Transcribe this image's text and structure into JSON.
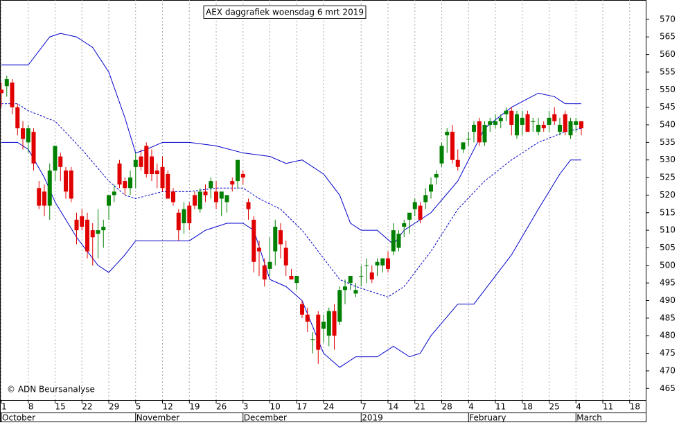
{
  "chart_data": {
    "type": "candlestick",
    "title": "AEX daggrafiek woensdag 6 mrt 2019",
    "credit": "© ADN Beursanalyse",
    "up_color": "#008000",
    "down_color": "#e00000",
    "xlim": [
      -0.26,
      120
    ],
    "ylim": [
      461.7,
      575.5
    ],
    "yticks": [
      465,
      470,
      475,
      480,
      485,
      490,
      495,
      500,
      505,
      510,
      515,
      520,
      525,
      530,
      535,
      540,
      545,
      550,
      555,
      560,
      565,
      570
    ],
    "xticks": [
      {
        "value": 0,
        "label": "1"
      },
      {
        "value": 5,
        "label": "8"
      },
      {
        "value": 10,
        "label": "15"
      },
      {
        "value": 15,
        "label": "22"
      },
      {
        "value": 20,
        "label": "29"
      },
      {
        "value": 25,
        "label": "5"
      },
      {
        "value": 30,
        "label": "12"
      },
      {
        "value": 35,
        "label": "19"
      },
      {
        "value": 40,
        "label": "26"
      },
      {
        "value": 45,
        "label": "3"
      },
      {
        "value": 50,
        "label": "10"
      },
      {
        "value": 55,
        "label": "17"
      },
      {
        "value": 60,
        "label": "24"
      },
      {
        "value": 67,
        "label": "7"
      },
      {
        "value": 72,
        "label": "14"
      },
      {
        "value": 77,
        "label": "21"
      },
      {
        "value": 82,
        "label": "28"
      },
      {
        "value": 87,
        "label": "4"
      },
      {
        "value": 92,
        "label": "11"
      },
      {
        "value": 97,
        "label": "18"
      },
      {
        "value": 102,
        "label": "25"
      },
      {
        "value": 107,
        "label": "4"
      },
      {
        "value": 112,
        "label": "11"
      },
      {
        "value": 117,
        "label": "18"
      }
    ],
    "months": [
      {
        "value": 0,
        "label": "October"
      },
      {
        "value": 25,
        "label": "November"
      },
      {
        "value": 45,
        "label": "December"
      },
      {
        "value": 67,
        "label": "2019"
      },
      {
        "value": 87,
        "label": "February"
      },
      {
        "value": 107,
        "label": "March"
      }
    ],
    "candles": {
      "open": [
        550,
        551,
        552,
        545,
        539,
        535,
        538,
        522,
        521,
        517,
        527,
        531,
        527,
        527,
        513,
        514,
        513,
        510,
        509,
        510,
        517,
        520,
        529,
        524,
        522,
        528,
        531,
        534,
        531,
        527,
        528,
        526,
        521,
        515,
        512,
        517,
        520,
        516,
        521,
        522,
        521,
        519,
        518,
        524,
        524,
        526,
        518,
        513,
        505,
        500,
        499,
        504,
        510,
        505,
        497,
        495,
        489,
        486,
        479,
        486,
        482,
        480,
        487,
        484,
        493,
        495,
        492,
        497,
        500,
        498,
        500,
        500,
        502,
        504,
        505,
        511,
        513,
        516,
        517,
        518,
        521,
        525,
        529,
        537,
        538,
        530,
        533,
        536,
        538,
        541,
        535,
        540,
        540,
        541,
        543,
        544,
        537,
        540,
        543,
        541,
        538,
        540,
        540,
        543,
        538,
        543,
        537,
        540,
        541
      ],
      "high": [
        552,
        554,
        553,
        546,
        541,
        540,
        539,
        524,
        523,
        529,
        534,
        532,
        528,
        528,
        515,
        516,
        515,
        512,
        516,
        513,
        520,
        523,
        530,
        525,
        527,
        532,
        533,
        535,
        533,
        529,
        531,
        527,
        522,
        516,
        518,
        518,
        521,
        522,
        523,
        525,
        524,
        521,
        520,
        525,
        530,
        527,
        519,
        514,
        507,
        502,
        508,
        513,
        512,
        507,
        499,
        497,
        490,
        488,
        481,
        487,
        486,
        488,
        489,
        494,
        496,
        497,
        495,
        500,
        502,
        500,
        502,
        502,
        504,
        512,
        510,
        513,
        515,
        519,
        518,
        522,
        525,
        527,
        535,
        539,
        540,
        533,
        535,
        538,
        541,
        542,
        541,
        542,
        543,
        543,
        545,
        545,
        544,
        544,
        544,
        542,
        542,
        541,
        544,
        545,
        542,
        544,
        542,
        542,
        541
      ],
      "low": [
        545,
        548,
        543,
        537,
        533,
        532,
        527,
        516,
        514,
        513,
        524,
        524,
        519,
        518,
        506,
        510,
        502,
        500,
        502,
        505,
        513,
        518,
        522,
        520,
        520,
        522,
        527,
        525,
        524,
        522,
        521,
        519,
        517,
        507,
        509,
        510,
        516,
        515,
        518,
        519,
        516,
        514,
        515,
        521,
        522,
        523,
        513,
        498,
        497,
        494,
        497,
        500,
        502,
        497,
        496,
        493,
        485,
        481,
        475,
        472,
        478,
        477,
        476,
        483,
        489,
        493,
        491,
        494,
        495,
        495,
        497,
        498,
        498,
        503,
        504,
        508,
        509,
        514,
        512,
        516,
        519,
        523,
        528,
        532,
        529,
        527,
        532,
        534,
        535,
        534,
        534,
        538,
        539,
        539,
        541,
        537,
        536,
        537,
        538,
        538,
        537,
        538,
        538,
        540,
        537,
        537,
        536,
        538,
        537
      ],
      "close": [
        549,
        553,
        545,
        539,
        536,
        539,
        529,
        517,
        517,
        527,
        534,
        528,
        521,
        519,
        510,
        511,
        504,
        508,
        510,
        511,
        520,
        521,
        523,
        522,
        525,
        530,
        528,
        526,
        526,
        526,
        522,
        519,
        518,
        510,
        516,
        512,
        517,
        521,
        520,
        524,
        518,
        521,
        520,
        523,
        530,
        525,
        516,
        501,
        504,
        496,
        501,
        511,
        506,
        500,
        496,
        497,
        486,
        484,
        479,
        476,
        484,
        487,
        480,
        493,
        494,
        497,
        493,
        497,
        500,
        496,
        501,
        502,
        499,
        510,
        509,
        512,
        515,
        518,
        513,
        520,
        523,
        526,
        534,
        538,
        530,
        528,
        535,
        536,
        540,
        535,
        540,
        541,
        541,
        542,
        544,
        540,
        543,
        542,
        538,
        541,
        540,
        539,
        542,
        541,
        540,
        538,
        541,
        541,
        539
      ]
    },
    "bands": [
      {
        "color": "#0000cc",
        "dash": false,
        "x": [
          0,
          5,
          9,
          11,
          14,
          17,
          20,
          23,
          25,
          27,
          30,
          35,
          40,
          45,
          50,
          53,
          56,
          60,
          63,
          65,
          67,
          70,
          73,
          75,
          80,
          85,
          90,
          95,
          100,
          103,
          105,
          108
        ],
        "values": [
          557,
          557,
          565,
          566,
          565,
          562,
          555,
          542,
          532,
          533,
          535,
          535,
          534,
          532,
          531,
          529,
          530,
          526,
          520,
          512,
          510,
          510,
          506,
          510,
          515,
          524,
          539,
          545,
          549,
          548,
          546,
          546
        ]
      },
      {
        "color": "#0000cc",
        "dash": true,
        "x": [
          0,
          3,
          5,
          10,
          15,
          20,
          23,
          25,
          30,
          35,
          40,
          45,
          48,
          52,
          56,
          60,
          63,
          66,
          70,
          72,
          75,
          80,
          85,
          90,
          95,
          100,
          105,
          108
        ],
        "values": [
          546,
          546,
          544,
          541,
          533,
          524,
          520,
          519,
          521,
          521,
          522,
          522,
          519,
          516,
          510,
          502,
          496,
          494,
          492,
          491,
          494,
          504,
          516,
          524,
          530,
          535,
          538,
          539
        ]
      },
      {
        "color": "#0000cc",
        "dash": false,
        "x": [
          0,
          3,
          5,
          8,
          10,
          14,
          18,
          20,
          23,
          25,
          30,
          35,
          38,
          42,
          45,
          47,
          50,
          53,
          56,
          60,
          63,
          66,
          70,
          73,
          76,
          78,
          80,
          85,
          88,
          90,
          95,
          100,
          104,
          106,
          108
        ],
        "values": [
          535,
          535,
          533,
          525,
          518,
          508,
          500,
          498,
          503,
          507,
          507,
          507,
          510,
          512,
          512,
          510,
          496,
          494,
          490,
          475,
          471,
          474,
          474,
          477,
          474,
          475,
          480,
          489,
          489,
          493,
          503,
          516,
          526,
          530,
          530
        ]
      }
    ]
  }
}
